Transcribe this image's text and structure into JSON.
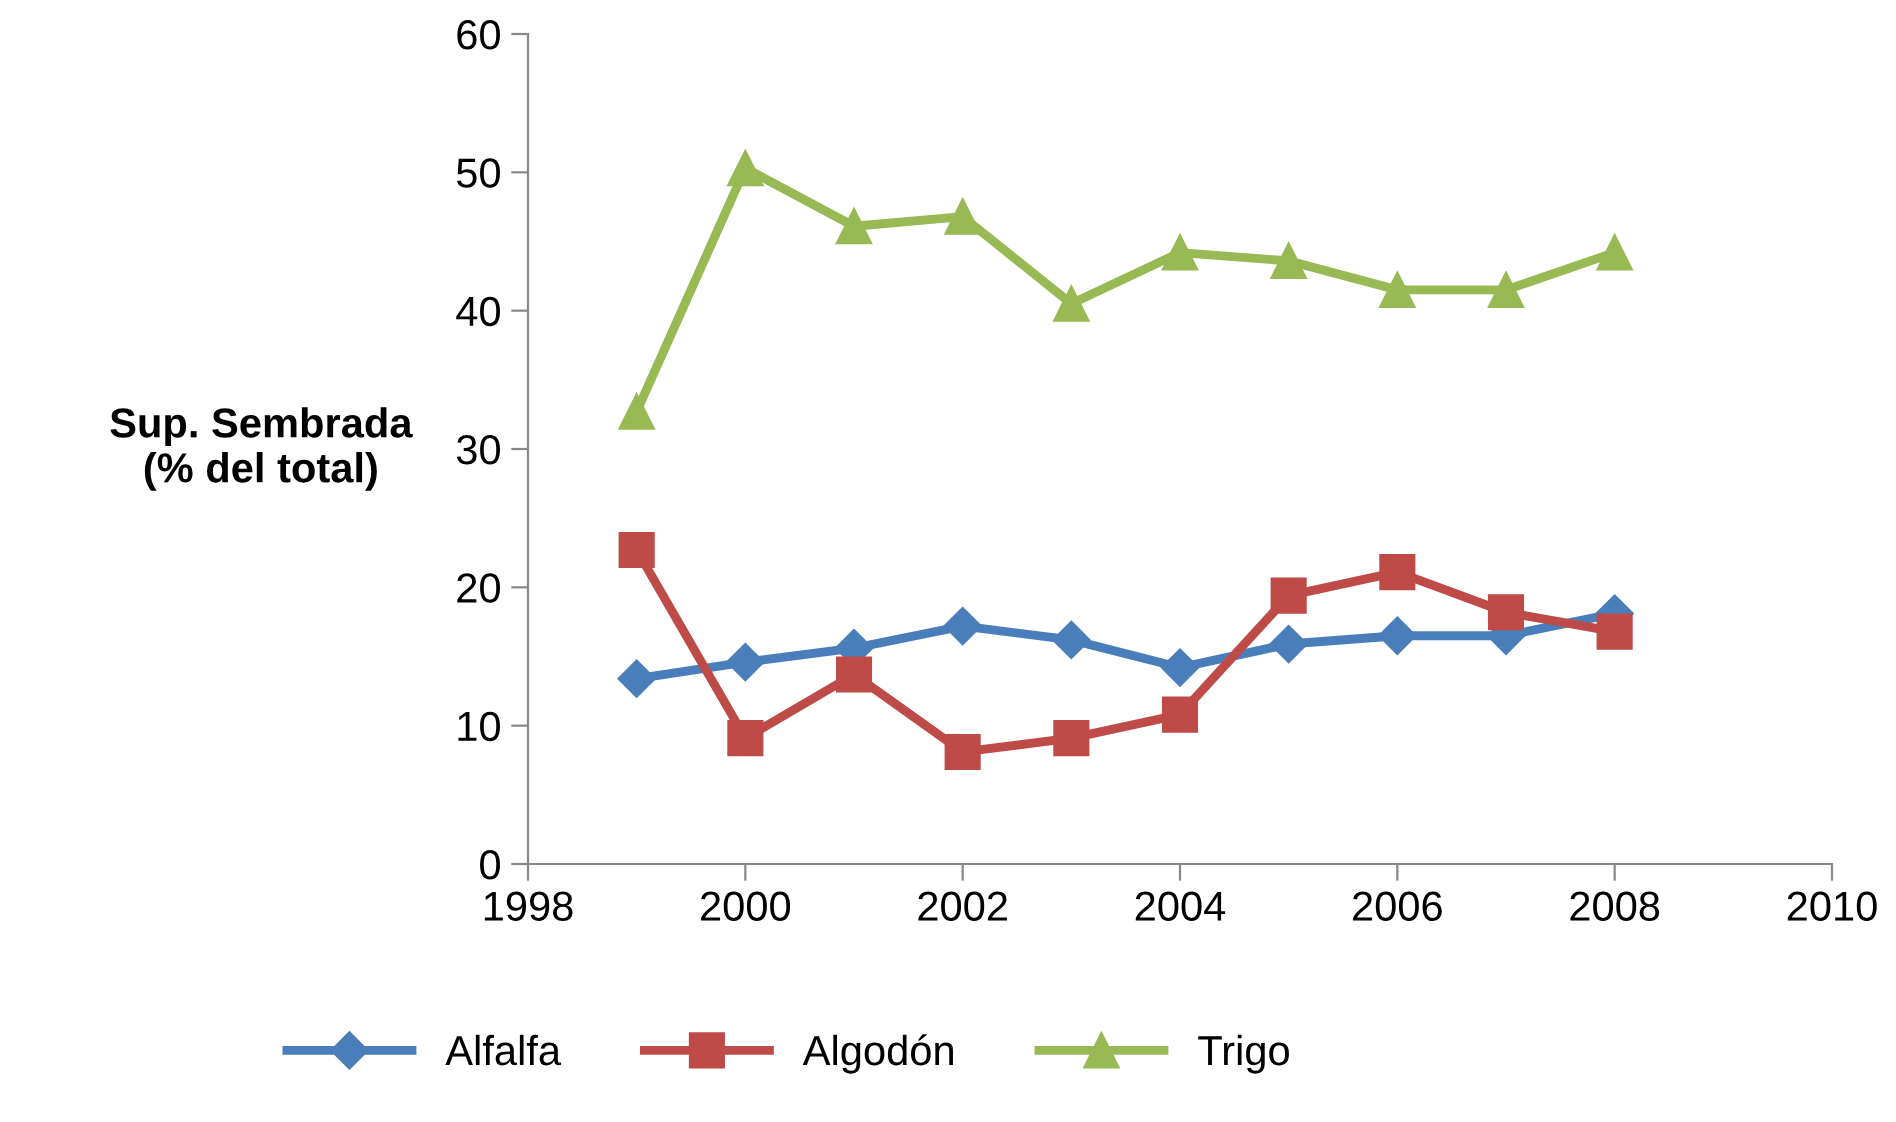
{
  "chart_data": {
    "type": "line",
    "ylabel": "Sup. Sembrada\n(% del total)",
    "x": [
      1999,
      2000,
      2001,
      2002,
      2003,
      2004,
      2005,
      2006,
      2007,
      2008
    ],
    "series": [
      {
        "name": "Alfalfa",
        "color": "#4a7ebb",
        "marker": "diamond",
        "values": [
          13.4,
          14.6,
          15.6,
          17.2,
          16.2,
          14.2,
          15.9,
          16.5,
          16.5,
          18.1
        ]
      },
      {
        "name": "Algodón",
        "color": "#be4b48",
        "marker": "square",
        "values": [
          22.7,
          9.1,
          13.7,
          8.1,
          9.1,
          10.8,
          19.4,
          21.1,
          18.2,
          16.8
        ]
      },
      {
        "name": "Trigo",
        "color": "#98b954",
        "marker": "triangle",
        "values": [
          32.7,
          50.3,
          46.1,
          46.8,
          40.5,
          44.2,
          43.6,
          41.5,
          41.5,
          44.2
        ]
      }
    ],
    "xlim": [
      1998,
      2010
    ],
    "xticks": [
      1998,
      2000,
      2002,
      2004,
      2006,
      2008,
      2010
    ],
    "ylim": [
      0,
      60
    ],
    "yticks": [
      0,
      10,
      20,
      30,
      40,
      50,
      60
    ],
    "grid": false,
    "legend": "bottom",
    "line_style": "solid"
  }
}
